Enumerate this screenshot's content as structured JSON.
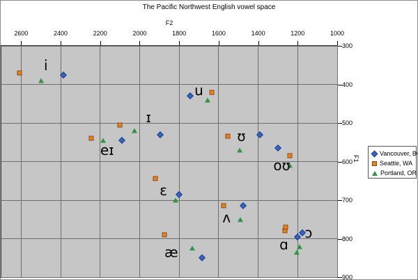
{
  "chart_data": {
    "type": "scatter",
    "title": "The Pacific Northwest English vowel space",
    "xlabel": "F2",
    "ylabel": "F1",
    "grid": true,
    "legend_position": "right",
    "x_axis": {
      "min": 1000,
      "max": 2700,
      "reversed": true,
      "ticks": [
        2600,
        2400,
        2200,
        2000,
        1800,
        1600,
        1400,
        1200,
        1000
      ]
    },
    "y_axis": {
      "min": 300,
      "max": 900,
      "reversed": true,
      "ticks": [
        300,
        400,
        500,
        600,
        700,
        800,
        900
      ]
    },
    "series": [
      {
        "name": "Vancouver, BC",
        "marker": "diamond",
        "color": "#3566c0",
        "edge_color": "#1c3a8e",
        "points": [
          {
            "vowel": "i",
            "f2": 2385,
            "f1": 375
          },
          {
            "vowel": "eɪ",
            "f2": 2090,
            "f1": 545
          },
          {
            "vowel": "ɪ",
            "f2": 1895,
            "f1": 530
          },
          {
            "vowel": "u",
            "f2": 1745,
            "f1": 430
          },
          {
            "vowel": "ʊ",
            "f2": 1390,
            "f1": 530
          },
          {
            "vowel": "oʊ",
            "f2": 1300,
            "f1": 565
          },
          {
            "vowel": "ɛ",
            "f2": 1800,
            "f1": 685
          },
          {
            "vowel": "ʌ",
            "f2": 1475,
            "f1": 715
          },
          {
            "vowel": "æ",
            "f2": 1685,
            "f1": 850
          },
          {
            "vowel": "ɑ",
            "f2": 1200,
            "f1": 795
          },
          {
            "vowel": "ɔ",
            "f2": 1175,
            "f1": 785
          }
        ]
      },
      {
        "name": "Seattle, WA",
        "marker": "square",
        "color": "#e8821e",
        "edge_color": "#8c4613",
        "points": [
          {
            "vowel": "i",
            "f2": 2610,
            "f1": 370
          },
          {
            "vowel": "eɪ",
            "f2": 2245,
            "f1": 540
          },
          {
            "vowel": "ɪ",
            "f2": 2100,
            "f1": 505
          },
          {
            "vowel": "u",
            "f2": 1635,
            "f1": 420
          },
          {
            "vowel": "ʊ",
            "f2": 1555,
            "f1": 535
          },
          {
            "vowel": "oʊ",
            "f2": 1240,
            "f1": 585
          },
          {
            "vowel": "ɛ",
            "f2": 1920,
            "f1": 645
          },
          {
            "vowel": "ʌ",
            "f2": 1575,
            "f1": 715
          },
          {
            "vowel": "æ",
            "f2": 1875,
            "f1": 790
          },
          {
            "vowel": "ɑ",
            "f2": 1265,
            "f1": 780
          },
          {
            "vowel": "ɔ",
            "f2": 1260,
            "f1": 770
          }
        ]
      },
      {
        "name": "Portland, OR",
        "marker": "triangle",
        "color": "#2e9642",
        "edge_color": "#1d5c2c",
        "points": [
          {
            "vowel": "i",
            "f2": 2500,
            "f1": 390
          },
          {
            "vowel": "eɪ",
            "f2": 2185,
            "f1": 545
          },
          {
            "vowel": "ɪ",
            "f2": 2025,
            "f1": 520
          },
          {
            "vowel": "u",
            "f2": 1655,
            "f1": 440
          },
          {
            "vowel": "ʊ",
            "f2": 1495,
            "f1": 570
          },
          {
            "vowel": "oʊ",
            "f2": 1240,
            "f1": 610
          },
          {
            "vowel": "ɛ",
            "f2": 1820,
            "f1": 700
          },
          {
            "vowel": "ʌ",
            "f2": 1490,
            "f1": 750
          },
          {
            "vowel": "æ",
            "f2": 1735,
            "f1": 825
          },
          {
            "vowel": "ɑ",
            "f2": 1205,
            "f1": 835
          },
          {
            "vowel": "ɔ",
            "f2": 1190,
            "f1": 820
          }
        ]
      }
    ],
    "vowel_labels": [
      {
        "text": "i",
        "f2": 2475,
        "f1": 350
      },
      {
        "text": "eɪ",
        "f2": 2165,
        "f1": 570
      },
      {
        "text": "ɪ",
        "f2": 1955,
        "f1": 485
      },
      {
        "text": "u",
        "f2": 1700,
        "f1": 415
      },
      {
        "text": "ʊ",
        "f2": 1485,
        "f1": 535
      },
      {
        "text": "oʊ",
        "f2": 1280,
        "f1": 610
      },
      {
        "text": "ɛ",
        "f2": 1880,
        "f1": 675
      },
      {
        "text": "ʌ",
        "f2": 1560,
        "f1": 745
      },
      {
        "text": "æ",
        "f2": 1840,
        "f1": 835
      },
      {
        "text": "ɑ",
        "f2": 1270,
        "f1": 815
      },
      {
        "text": "ɔ",
        "f2": 1145,
        "f1": 785
      }
    ]
  },
  "colors": {
    "plot_background": "#c6c6c6",
    "gridline": "#6e6e6e",
    "axis_line": "#000000",
    "vancouver_blue": "#3566c0",
    "seattle_orange": "#e8821e",
    "portland_green": "#2e9642"
  }
}
